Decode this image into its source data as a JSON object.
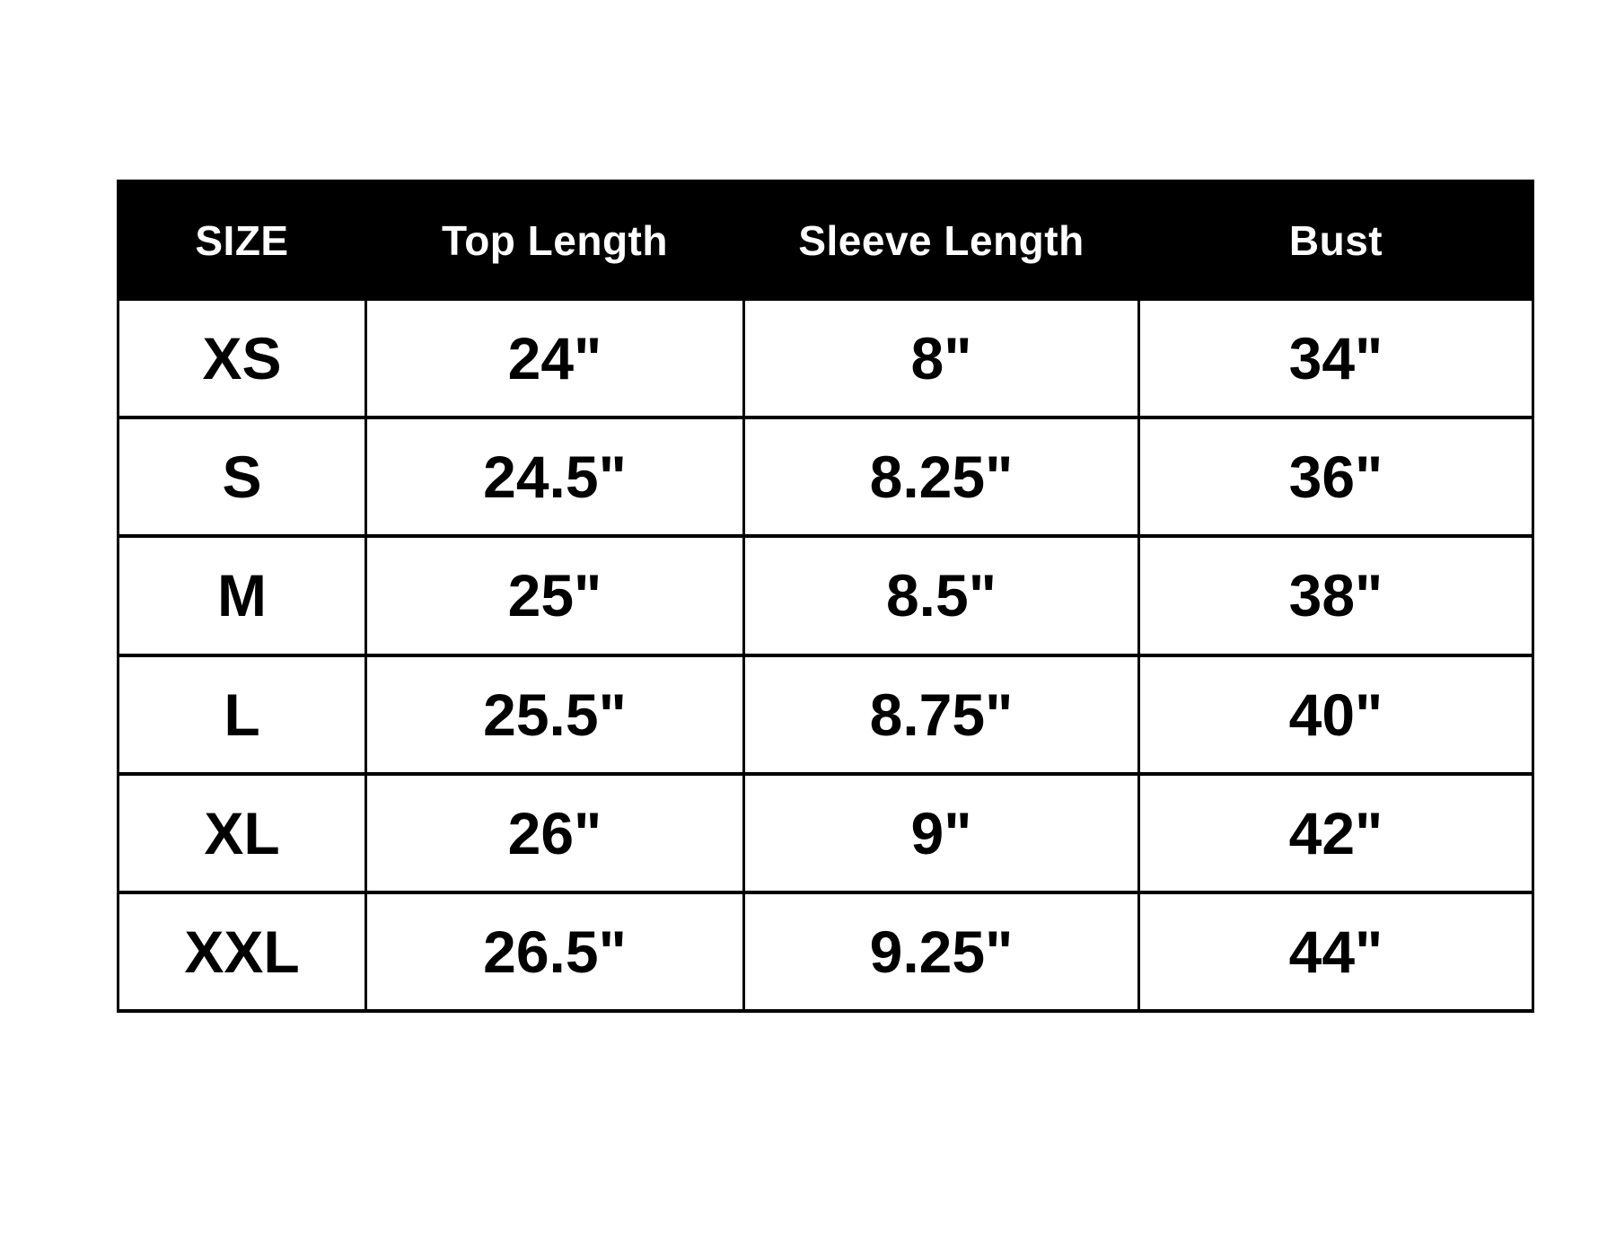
{
  "style": {
    "page_bg": "#ffffff",
    "header_bg": "#000000",
    "header_text": "#ffffff",
    "cell_bg": "#ffffff",
    "cell_text": "#000000",
    "grid_line": "#000000"
  },
  "chart_data": {
    "type": "table",
    "columns": [
      "SIZE",
      "Top Length",
      "Sleeve Length",
      "Bust"
    ],
    "rows": [
      [
        "XS",
        "24\"",
        "8\"",
        "34\""
      ],
      [
        "S",
        "24.5\"",
        "8.25\"",
        "36\""
      ],
      [
        "M",
        "25\"",
        "8.5\"",
        "38\""
      ],
      [
        "L",
        "25.5\"",
        "8.75\"",
        "40\""
      ],
      [
        "XL",
        "26\"",
        "9\"",
        "42\""
      ],
      [
        "XXL",
        "26.5\"",
        "9.25\"",
        "44\""
      ]
    ],
    "legend": false,
    "grid": "on"
  }
}
